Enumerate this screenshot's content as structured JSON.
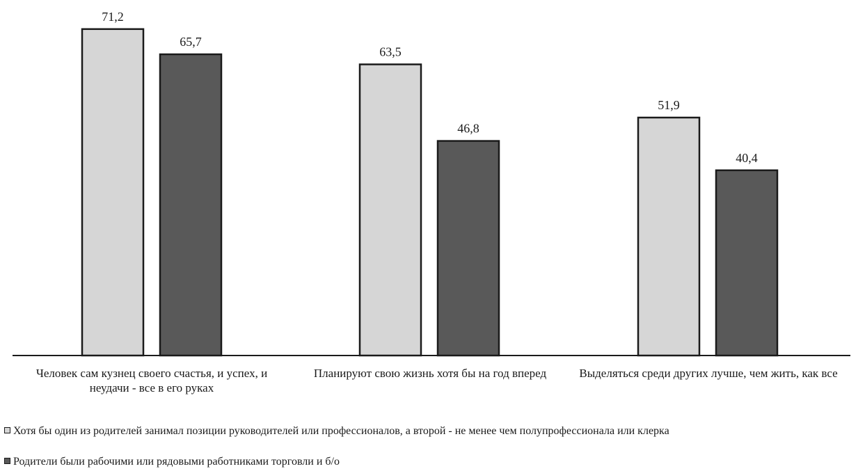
{
  "chart_data": {
    "type": "bar",
    "categories": [
      "Человек сам кузнец своего счастья, и успех, и неудачи  - все в его руках",
      "Планируют свою жизнь хотя бы на год вперед",
      "Выделяться среди других лучше, чем жить, как все"
    ],
    "series": [
      {
        "name": "Хотя бы один из родителей  занимал позиции руководителей или профессионалов,  а второй - не менее чем полупрофессионала или клерка",
        "values": [
          71.2,
          63.5,
          51.9
        ],
        "labels": [
          "71,2",
          "63,5",
          "51,9"
        ],
        "color": "#d6d6d6"
      },
      {
        "name": "Родители были рабочими или рядовыми работниками  торговли и б/о",
        "values": [
          65.7,
          46.8,
          40.4
        ],
        "labels": [
          "65,7",
          "46,8",
          "40,4"
        ],
        "color": "#595959"
      }
    ],
    "ylim": [
      0,
      80
    ],
    "grid": false,
    "legend_position": "bottom-left"
  }
}
